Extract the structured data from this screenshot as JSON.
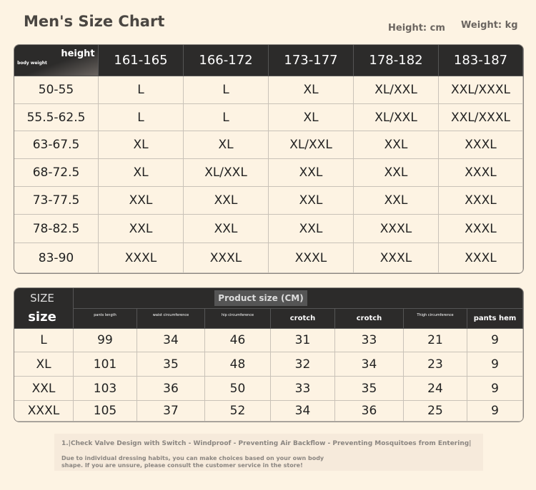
{
  "header": {
    "title": "Men's Size Chart",
    "height_unit": "Height: cm",
    "weight_unit": "Weight: kg"
  },
  "table1": {
    "corner_top": "height",
    "corner_bottom": "body weight",
    "columns": [
      "161-165",
      "166-172",
      "173-177",
      "178-182",
      "183-187"
    ],
    "rows": [
      [
        "50-55",
        "L",
        "L",
        "XL",
        "XL/XXL",
        "XXL/XXXL"
      ],
      [
        "55.5-62.5",
        "L",
        "L",
        "XL",
        "XL/XXL",
        "XXL/XXXL"
      ],
      [
        "63-67.5",
        "XL",
        "XL",
        "XL/XXL",
        "XXL",
        "XXXL"
      ],
      [
        "68-72.5",
        "XL",
        "XL/XXL",
        "XXL",
        "XXL",
        "XXXL"
      ],
      [
        "73-77.5",
        "XXL",
        "XXL",
        "XXL",
        "XXL",
        "XXXL"
      ],
      [
        "78-82.5",
        "XXL",
        "XXL",
        "XXL",
        "XXXL",
        "XXXL"
      ],
      [
        "83-90",
        "XXXL",
        "XXXL",
        "XXXL",
        "XXXL",
        "XXXL"
      ]
    ]
  },
  "table2": {
    "corner_top": "SIZE",
    "corner_bottom": "size",
    "group_header": "Product size (CM)",
    "columns": [
      "pants length",
      "waist circumference",
      "hip circumference",
      "crotch",
      "crotch",
      "Thigh circumference",
      "pants hem"
    ],
    "rows": [
      [
        "L",
        99,
        34,
        46,
        31,
        33,
        21,
        9
      ],
      [
        "XL",
        101,
        35,
        48,
        32,
        34,
        23,
        9
      ],
      [
        "XXL",
        103,
        36,
        50,
        33,
        35,
        24,
        9
      ],
      [
        "XXXL",
        105,
        37,
        52,
        34,
        36,
        25,
        9
      ]
    ]
  },
  "notes": {
    "line1": "1.|Check Valve Design with Switch - Windproof - Preventing Air Backflow - Preventing Mosquitoes from Entering|",
    "line2": "Due to individual dressing habits, you can make choices based on your own body shape. If you are unsure, please consult the customer service in the store!"
  }
}
